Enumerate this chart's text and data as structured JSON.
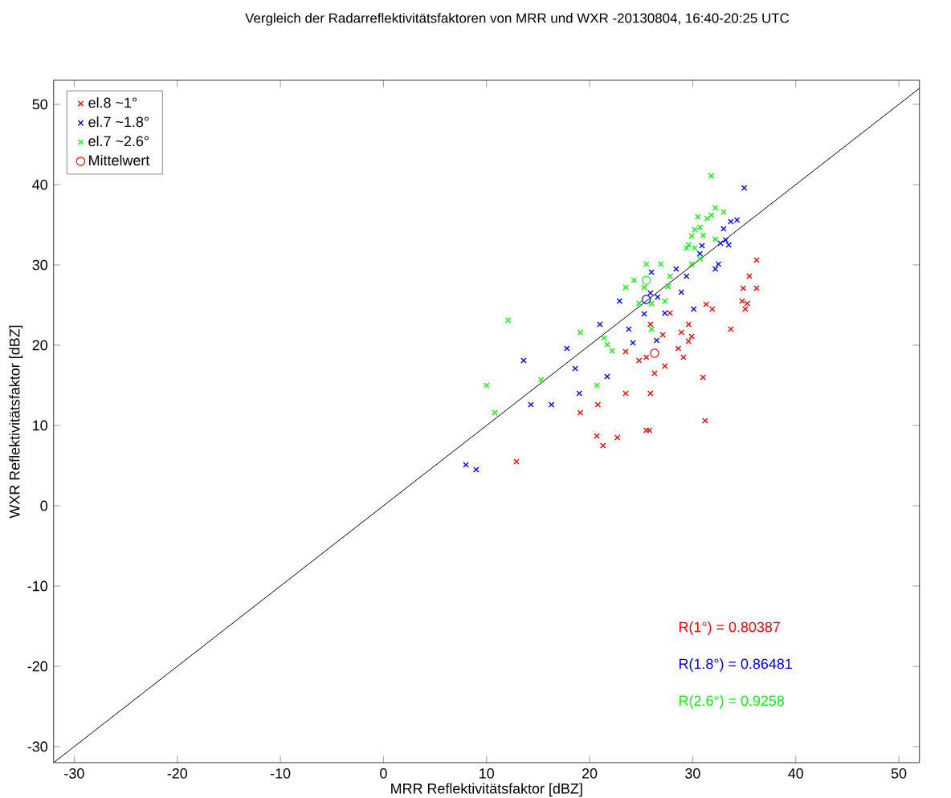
{
  "chart_data": {
    "type": "scatter",
    "title": "Vergleich der Radarreflektivitätsfaktoren von MRR und WXR -20130804, 16:40-20:25 UTC",
    "xlabel": "MRR Reflektivitätsfaktor [dBZ]",
    "ylabel": "WXR Reflektivitätsfaktor [dBZ]",
    "xlim": [
      -32,
      52
    ],
    "ylim": [
      -32,
      53
    ],
    "xticks": [
      -30,
      -20,
      -10,
      0,
      10,
      20,
      30,
      40,
      50
    ],
    "yticks": [
      -30,
      -20,
      -10,
      0,
      10,
      20,
      30,
      40,
      50
    ],
    "legend": "top left",
    "marker": "cross",
    "series": [
      {
        "name": "el.8 ~1°",
        "color": "#ff0000",
        "x": [
          36.2,
          35.5,
          34.9,
          36.2,
          34.8,
          35.3,
          35.1,
          31.3,
          31.9,
          33.7,
          29.6,
          28.9,
          29.9,
          29.6,
          27.1,
          25.9,
          27.8,
          28.6,
          29.1,
          24.8,
          25.5,
          23.5,
          27.3,
          26.3,
          31.0,
          23.5,
          25.9,
          20.8,
          19.1,
          31.2,
          20.7,
          21.3,
          22.7,
          25.5,
          25.8,
          12.9
        ],
        "values": [
          30.6,
          28.6,
          27.1,
          27.1,
          25.5,
          25.2,
          24.5,
          25.1,
          24.5,
          22.0,
          22.6,
          21.6,
          21.1,
          20.5,
          21.3,
          22.6,
          24.0,
          19.6,
          18.5,
          18.1,
          18.5,
          19.2,
          17.4,
          16.5,
          16.0,
          14.0,
          14.0,
          12.6,
          11.6,
          10.6,
          8.7,
          7.5,
          8.5,
          9.4,
          9.4,
          5.5
        ]
      },
      {
        "name": "el.7 ~1.8°",
        "color": "#0000ff",
        "x": [
          35.0,
          34.3,
          33.7,
          33.0,
          33.2,
          33.5,
          32.7,
          30.9,
          30.7,
          32.5,
          32.2,
          29.4,
          28.4,
          26.0,
          28.9,
          25.9,
          26.6,
          25.3,
          27.3,
          30.1,
          22.9,
          21.0,
          23.8,
          24.2,
          26.5,
          17.8,
          13.6,
          18.6,
          21.7,
          19.0,
          14.3,
          16.3,
          8.0,
          9.0
        ],
        "values": [
          39.6,
          35.6,
          35.4,
          34.5,
          33.1,
          32.5,
          32.7,
          32.4,
          31.4,
          30.1,
          29.5,
          28.6,
          29.5,
          29.1,
          26.6,
          26.5,
          26.0,
          23.9,
          24.0,
          24.5,
          25.5,
          22.6,
          22.0,
          20.3,
          20.6,
          19.6,
          18.1,
          17.1,
          16.1,
          14.0,
          12.6,
          12.6,
          5.1,
          4.5
        ]
      },
      {
        "name": "el.7 ~2.6°",
        "color": "#00ff00",
        "x": [
          31.8,
          32.2,
          33.0,
          31.8,
          31.4,
          30.5,
          30.7,
          30.2,
          31.0,
          29.9,
          29.6,
          29.4,
          30.2,
          30.7,
          29.9,
          32.2,
          25.5,
          26.9,
          27.8,
          24.3,
          23.5,
          25.3,
          27.6,
          24.8,
          26.0,
          27.3,
          26.0,
          19.1,
          21.4,
          21.7,
          22.2,
          15.3,
          20.7,
          12.1,
          10.0,
          10.8
        ],
        "values": [
          41.1,
          37.1,
          36.6,
          36.2,
          35.8,
          36.0,
          34.7,
          34.4,
          33.7,
          33.6,
          32.5,
          32.1,
          32.1,
          30.8,
          30.1,
          33.2,
          30.1,
          30.1,
          28.6,
          28.1,
          27.2,
          27.2,
          27.3,
          25.2,
          25.2,
          25.5,
          22.0,
          21.6,
          20.9,
          20.1,
          19.3,
          15.7,
          15.0,
          23.1,
          15.0,
          11.6
        ]
      },
      {
        "name": "Mittelwert",
        "color": "#ff0000",
        "colors": [
          "#ff0000",
          "#0000ff",
          "#00ff00"
        ],
        "marker": "circle",
        "x": [
          26.3,
          25.5,
          25.5
        ],
        "values": [
          19.0,
          25.7,
          28.1
        ]
      },
      {
        "type": "line",
        "color": "#000000",
        "marker": "none",
        "x": [
          -32,
          52
        ],
        "values": [
          -32,
          52
        ]
      }
    ],
    "annotations": [
      "R(1°) = 0.80387",
      "R(1.8°) = 0.86481",
      "R(2.6°) = 0.9258"
    ]
  }
}
